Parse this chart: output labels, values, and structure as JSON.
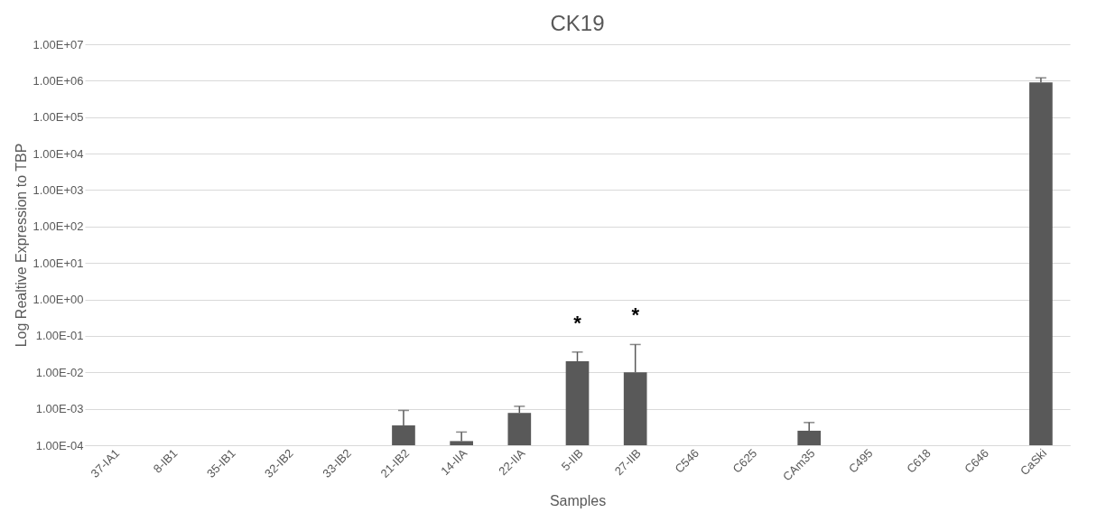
{
  "chart_data": {
    "type": "bar",
    "title": "CK19",
    "xlabel": "Samples",
    "ylabel": "Log Realtive Expression to TBP",
    "categories": [
      "37-IA1",
      "8-IB1",
      "35-IB1",
      "32-IB2",
      "33-IB2",
      "21-IB2",
      "14-IIA",
      "22-IIA",
      "5-IIB",
      "27-IIB",
      "C546",
      "C625",
      "CAm35",
      "C495",
      "C618",
      "C646",
      "CaSki"
    ],
    "values": [
      null,
      null,
      null,
      null,
      null,
      0.00035,
      0.00013,
      0.00077,
      0.02,
      0.01,
      null,
      null,
      0.00025,
      null,
      null,
      null,
      900000
    ],
    "errors": [
      null,
      null,
      null,
      null,
      null,
      [
        0.00035,
        0.0009
      ],
      [
        0.00013,
        0.00023
      ],
      [
        0.00077,
        0.00117
      ],
      [
        0.02,
        0.036
      ],
      [
        0.01,
        0.058
      ],
      null,
      null,
      [
        0.00025,
        0.00042
      ],
      null,
      null,
      null,
      [
        900000,
        1200000
      ]
    ],
    "color": "#595959",
    "log": "y",
    "grid": "y",
    "ylim": [
      0.0001,
      10000000
    ],
    "yticks": [
      {
        "value": 0.0001,
        "label": "1.00E-04"
      },
      {
        "value": 0.001,
        "label": "1.00E-03"
      },
      {
        "value": 0.01,
        "label": "1.00E-02"
      },
      {
        "value": 0.1,
        "label": "1.00E-01"
      },
      {
        "value": 1,
        "label": "1.00E+00"
      },
      {
        "value": 10,
        "label": "1.00E+01"
      },
      {
        "value": 100,
        "label": "1.00E+02"
      },
      {
        "value": 1000,
        "label": "1.00E+03"
      },
      {
        "value": 10000,
        "label": "1.00E+04"
      },
      {
        "value": 100000,
        "label": "1.00E+05"
      },
      {
        "value": 1000000,
        "label": "1.00E+06"
      },
      {
        "value": 10000000,
        "label": "1.00E+07"
      }
    ],
    "annotations": [
      {
        "text": "*",
        "x": "5-IIB",
        "y": 0.036
      },
      {
        "text": "*",
        "x": "27-IIB",
        "y": 0.058
      }
    ]
  }
}
